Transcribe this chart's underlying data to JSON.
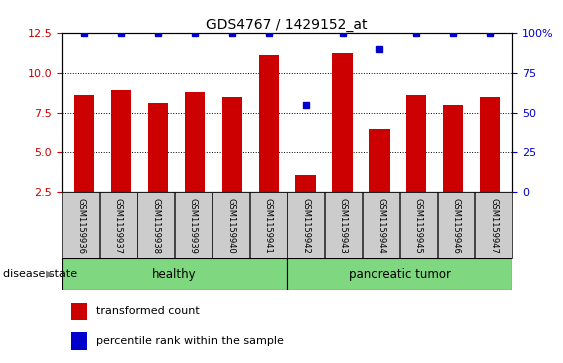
{
  "title": "GDS4767 / 1429152_at",
  "samples": [
    "GSM1159936",
    "GSM1159937",
    "GSM1159938",
    "GSM1159939",
    "GSM1159940",
    "GSM1159941",
    "GSM1159942",
    "GSM1159943",
    "GSM1159944",
    "GSM1159945",
    "GSM1159946",
    "GSM1159947"
  ],
  "transformed_count": [
    8.6,
    8.9,
    8.1,
    8.8,
    8.5,
    11.1,
    3.6,
    11.2,
    6.5,
    8.6,
    8.0,
    8.5
  ],
  "percentile_rank": [
    100,
    100,
    100,
    100,
    100,
    100,
    55,
    100,
    90,
    100,
    100,
    100
  ],
  "disease_groups": [
    {
      "label": "healthy",
      "start": 0,
      "end": 6,
      "color": "#7FD87F"
    },
    {
      "label": "pancreatic tumor",
      "start": 6,
      "end": 12,
      "color": "#7FD87F"
    }
  ],
  "bar_color": "#CC0000",
  "dot_color": "#0000CC",
  "bar_bottom": 2.5,
  "ylim_left": [
    2.5,
    12.5
  ],
  "ylim_right": [
    0,
    100
  ],
  "yticks_left": [
    2.5,
    5.0,
    7.5,
    10.0,
    12.5
  ],
  "yticks_right": [
    0,
    25,
    50,
    75,
    100
  ],
  "left_axis_color": "#CC0000",
  "right_axis_color": "#0000CC",
  "bar_width": 0.55,
  "legend_items": [
    {
      "label": "transformed count",
      "color": "#CC0000"
    },
    {
      "label": "percentile rank within the sample",
      "color": "#0000CC"
    }
  ],
  "disease_state_label": "disease state",
  "background_color": "#ffffff",
  "grid_color": "#000000",
  "tick_label_area_color": "#cccccc"
}
